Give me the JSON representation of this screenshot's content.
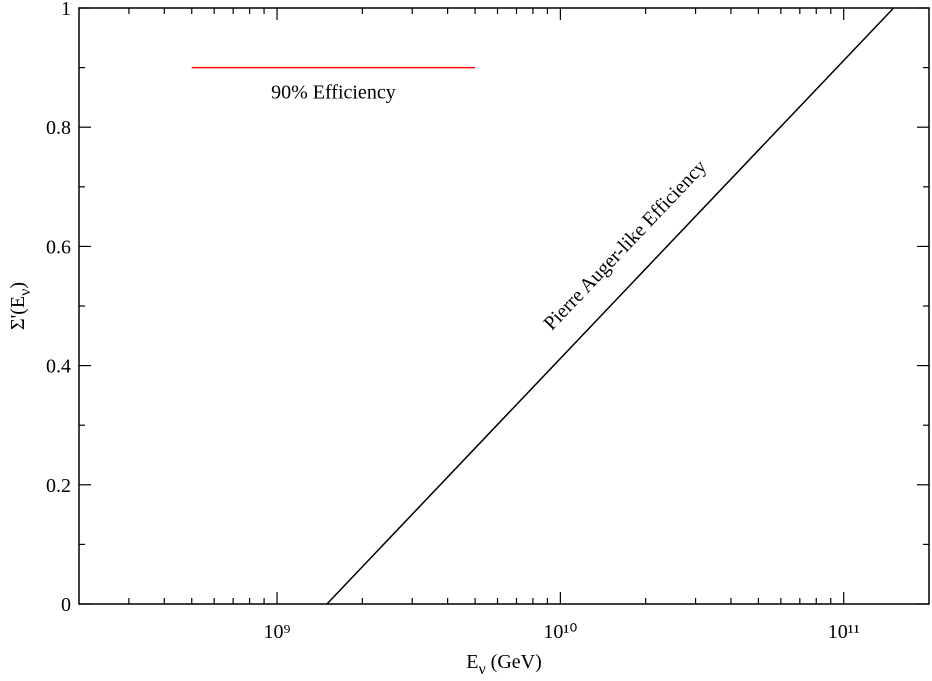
{
  "chart_data": {
    "type": "line",
    "x_label": {
      "main": "E",
      "sub": "ν",
      "rest": " (GeV)"
    },
    "y_label": {
      "main": "Σ'(E",
      "sub": "ν",
      "rest": ")"
    },
    "xscale": "log",
    "xlim": [
      200000000,
      200000000000
    ],
    "ylim": [
      0,
      1
    ],
    "xticks": [
      {
        "value": 1000000000,
        "label": "10⁹"
      },
      {
        "value": 10000000000,
        "label": "10¹⁰"
      },
      {
        "value": 100000000000,
        "label": "10¹¹"
      }
    ],
    "xminorticks": [
      300000000,
      400000000,
      500000000,
      600000000,
      700000000,
      800000000,
      900000000,
      2000000000,
      3000000000,
      4000000000,
      5000000000,
      6000000000,
      7000000000,
      8000000000,
      9000000000,
      20000000000,
      30000000000,
      40000000000,
      50000000000,
      60000000000,
      70000000000,
      80000000000,
      90000000000
    ],
    "yticks": [
      0,
      0.2,
      0.4,
      0.6,
      0.8,
      1
    ],
    "yminorticks": [
      0.1,
      0.3,
      0.5,
      0.7,
      0.9
    ],
    "series": [
      {
        "name": "90% Efficiency",
        "color": "#ff0000",
        "x": [
          500000000,
          5000000000
        ],
        "values": [
          0.9,
          0.9
        ]
      },
      {
        "name": "Pierre Auger-like Efficiency",
        "color": "#000000",
        "x": [
          1500000000,
          150000000000
        ],
        "values": [
          0,
          1
        ]
      }
    ]
  }
}
